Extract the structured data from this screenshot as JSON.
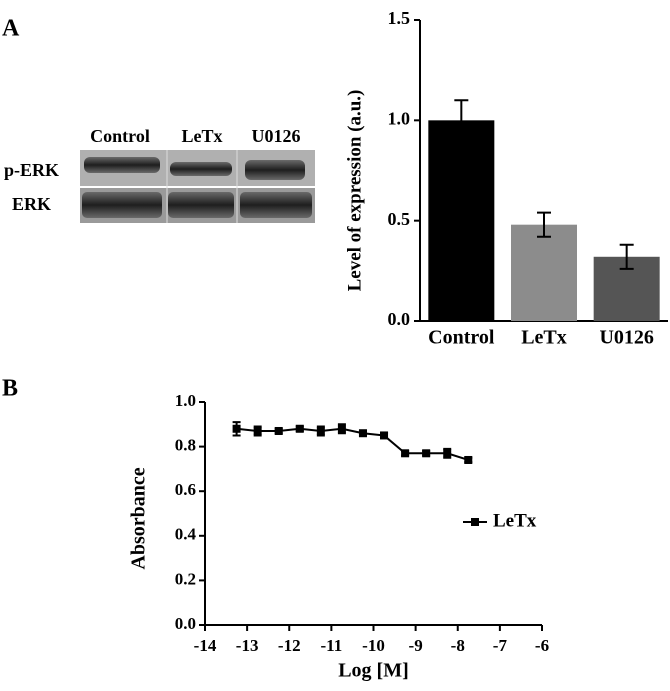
{
  "panel_labels": [
    "A",
    "B"
  ],
  "blot": {
    "columns": [
      "Control",
      "LeTx",
      "U0126"
    ],
    "rows": [
      "p-ERK",
      "ERK"
    ]
  },
  "chart_data": [
    {
      "type": "bar",
      "ylabel": "Level of expression (a.u.)",
      "categories": [
        "Control",
        "LeTx",
        "U0126"
      ],
      "values": [
        1.0,
        0.48,
        0.32
      ],
      "errors": [
        0.1,
        0.06,
        0.06
      ],
      "colors": [
        "#000000",
        "#8c8c8c",
        "#555555"
      ],
      "ylim": [
        0,
        1.5
      ],
      "yticks": [
        {
          "value": 0,
          "label": "0.0"
        },
        {
          "value": 0.5,
          "label": "0.5"
        },
        {
          "value": 1.0,
          "label": "1.0"
        },
        {
          "value": 1.5,
          "label": "1.5"
        }
      ]
    },
    {
      "type": "line",
      "xlabel": "Log [M]",
      "ylabel": "Absorbance",
      "x": [
        -13.25,
        -12.75,
        -12.25,
        -11.75,
        -11.25,
        -10.75,
        -10.25,
        -9.75,
        -9.25,
        -8.75,
        -8.25,
        -7.75
      ],
      "series": [
        {
          "name": "LeTx",
          "color": "#000000",
          "values": [
            0.88,
            0.87,
            0.87,
            0.88,
            0.87,
            0.88,
            0.86,
            0.85,
            0.77,
            0.77,
            0.77,
            0.74
          ],
          "errors": [
            0.03,
            0.02,
            0.01,
            0.01,
            0.02,
            0.02,
            0.01,
            0.01,
            0.01,
            0.01,
            0.02,
            0.01
          ]
        }
      ],
      "xlim": [
        -14,
        -6
      ],
      "xticks": [
        -14,
        -13,
        -12,
        -11,
        -10,
        -9,
        -8,
        -7,
        -6
      ],
      "ylim": [
        0,
        1.0
      ],
      "yticks": [
        {
          "value": 0,
          "label": "0.0"
        },
        {
          "value": 0.2,
          "label": "0.2"
        },
        {
          "value": 0.4,
          "label": "0.4"
        },
        {
          "value": 0.6,
          "label": "0.6"
        },
        {
          "value": 0.8,
          "label": "0.8"
        },
        {
          "value": 1.0,
          "label": "1.0"
        }
      ],
      "legend": "right"
    }
  ]
}
